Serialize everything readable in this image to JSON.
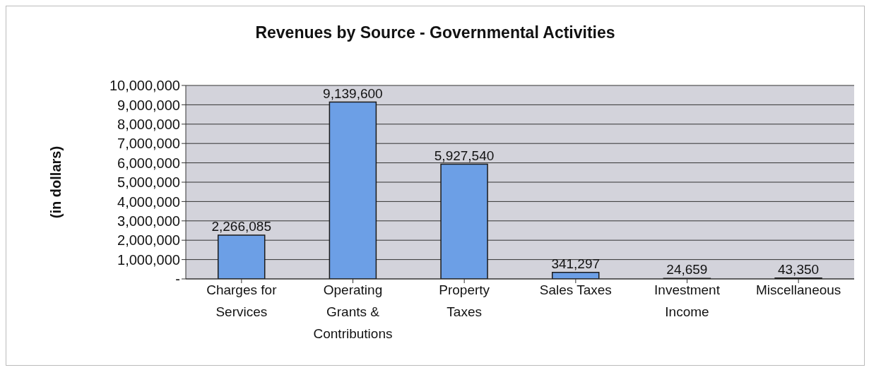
{
  "chart_data": {
    "type": "bar",
    "title": "Revenues by Source - Governmental Activities",
    "ylabel": "(in dollars)",
    "categories": [
      "Charges for Services",
      "Operating Grants & Contributions",
      "Property Taxes",
      "Sales Taxes",
      "Investment Income",
      "Miscellaneous"
    ],
    "values": [
      2266085,
      9139600,
      5927540,
      341297,
      24659,
      43350
    ],
    "color": "#6c9fe6",
    "ylim": [
      0,
      10000000
    ],
    "yticks": [
      {
        "value": 0,
        "label": "-"
      },
      {
        "value": 1000000,
        "label": "1,000,000"
      },
      {
        "value": 2000000,
        "label": "2,000,000"
      },
      {
        "value": 3000000,
        "label": "3,000,000"
      },
      {
        "value": 4000000,
        "label": "4,000,000"
      },
      {
        "value": 5000000,
        "label": "5,000,000"
      },
      {
        "value": 6000000,
        "label": "6,000,000"
      },
      {
        "value": 7000000,
        "label": "7,000,000"
      },
      {
        "value": 8000000,
        "label": "8,000,000"
      },
      {
        "value": 9000000,
        "label": "9,000,000"
      },
      {
        "value": 10000000,
        "label": "10,000,000"
      }
    ],
    "value_labels": [
      "2,266,085",
      "9,139,600",
      "5,927,540",
      "341,297",
      "24,659",
      "43,350"
    ],
    "grid": "y",
    "legend": false
  }
}
